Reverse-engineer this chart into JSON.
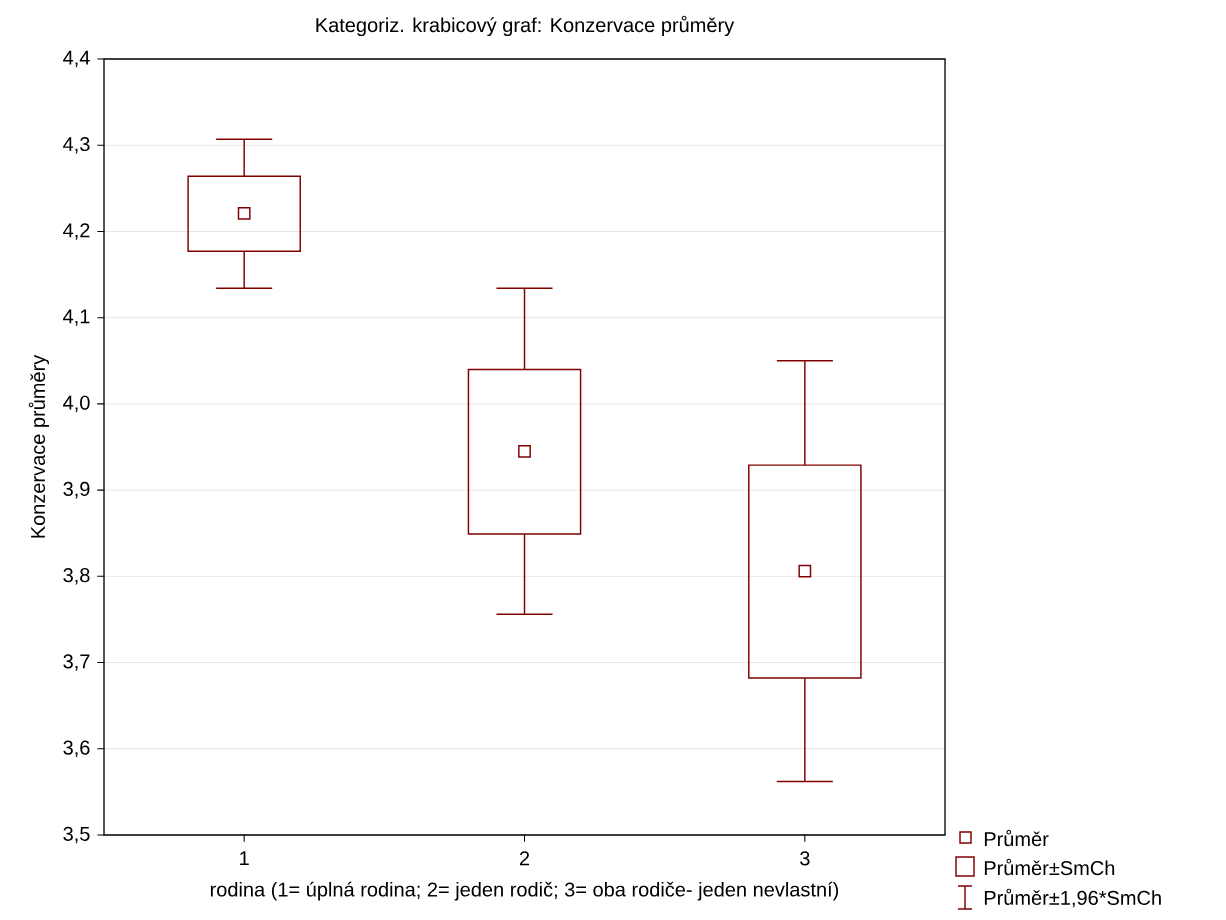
{
  "chart_data": {
    "type": "box",
    "title": "Kategoriz. krabicový graf: Konzervace průměry",
    "xlabel": "rodina (1= úplná rodina; 2= jeden rodič; 3= oba rodiče- jeden nevlastní)",
    "ylabel": "Konzervace průměry",
    "categories": [
      "1",
      "2",
      "3"
    ],
    "boxes": [
      {
        "low": 4.134,
        "q1": 4.177,
        "median": 4.221,
        "q3": 4.264,
        "high": 4.307
      },
      {
        "low": 3.756,
        "q1": 3.849,
        "median": 3.945,
        "q3": 4.04,
        "high": 4.134
      },
      {
        "low": 3.562,
        "q1": 3.682,
        "median": 3.806,
        "q3": 3.929,
        "high": 4.05
      }
    ],
    "color": "#800000",
    "marker": "square",
    "grid": "y",
    "ylim": [
      3.5,
      4.4
    ],
    "yticks": [
      {
        "value": 3.5,
        "label": "3,5"
      },
      {
        "value": 3.6,
        "label": "3,6"
      },
      {
        "value": 3.7,
        "label": "3,7"
      },
      {
        "value": 3.8,
        "label": "3,8"
      },
      {
        "value": 3.9,
        "label": "3,9"
      },
      {
        "value": 4.0,
        "label": "4,0"
      },
      {
        "value": 4.1,
        "label": "4,1"
      },
      {
        "value": 4.2,
        "label": "4,2"
      },
      {
        "value": 4.3,
        "label": "4,3"
      },
      {
        "value": 4.4,
        "label": "4,4"
      }
    ],
    "annotations": [
      "Průměr",
      "Průměr±SmCh",
      "Průměr±1,96*SmCh"
    ]
  }
}
